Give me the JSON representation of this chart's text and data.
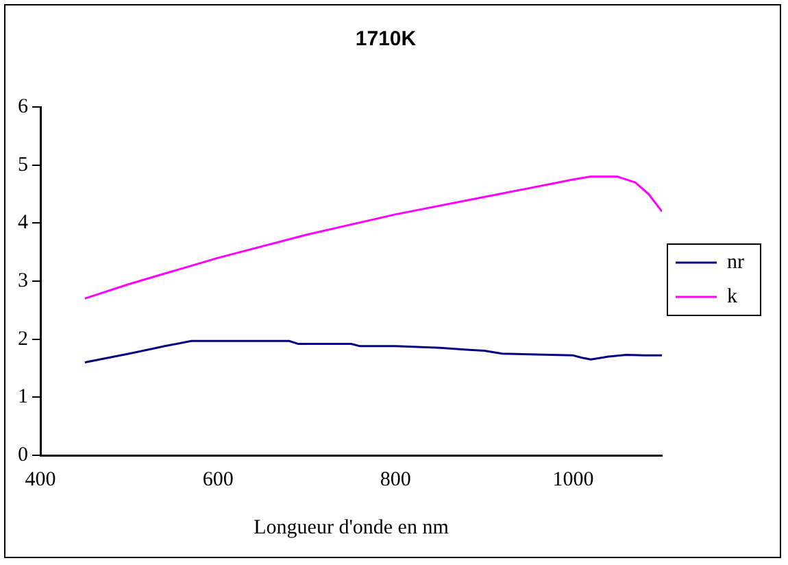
{
  "chart_data": {
    "type": "line",
    "title": "1710K",
    "xlabel": "Longueur d'onde en nm",
    "xlim": [
      400,
      1100
    ],
    "xticks": [
      400,
      600,
      800,
      1000
    ],
    "ylim": [
      0,
      6
    ],
    "yticks": [
      0,
      1,
      2,
      3,
      4,
      5,
      6
    ],
    "grid": false,
    "legend": "right",
    "marker": "none",
    "line_style": "solid",
    "series": [
      {
        "name": "nr",
        "color": "#000080",
        "x": [
          450,
          500,
          540,
          570,
          680,
          690,
          750,
          760,
          800,
          850,
          880,
          900,
          920,
          1000,
          1010,
          1020,
          1040,
          1060,
          1080,
          1100
        ],
        "values": [
          1.6,
          1.75,
          1.88,
          1.97,
          1.97,
          1.92,
          1.92,
          1.88,
          1.88,
          1.85,
          1.82,
          1.8,
          1.75,
          1.72,
          1.68,
          1.65,
          1.7,
          1.73,
          1.72,
          1.72
        ]
      },
      {
        "name": "k",
        "color": "#ff00ff",
        "x": [
          450,
          500,
          600,
          700,
          800,
          900,
          1000,
          1020,
          1050,
          1070,
          1085,
          1100
        ],
        "values": [
          2.7,
          2.95,
          3.4,
          3.8,
          4.15,
          4.45,
          4.75,
          4.8,
          4.8,
          4.7,
          4.5,
          4.2
        ]
      }
    ]
  }
}
